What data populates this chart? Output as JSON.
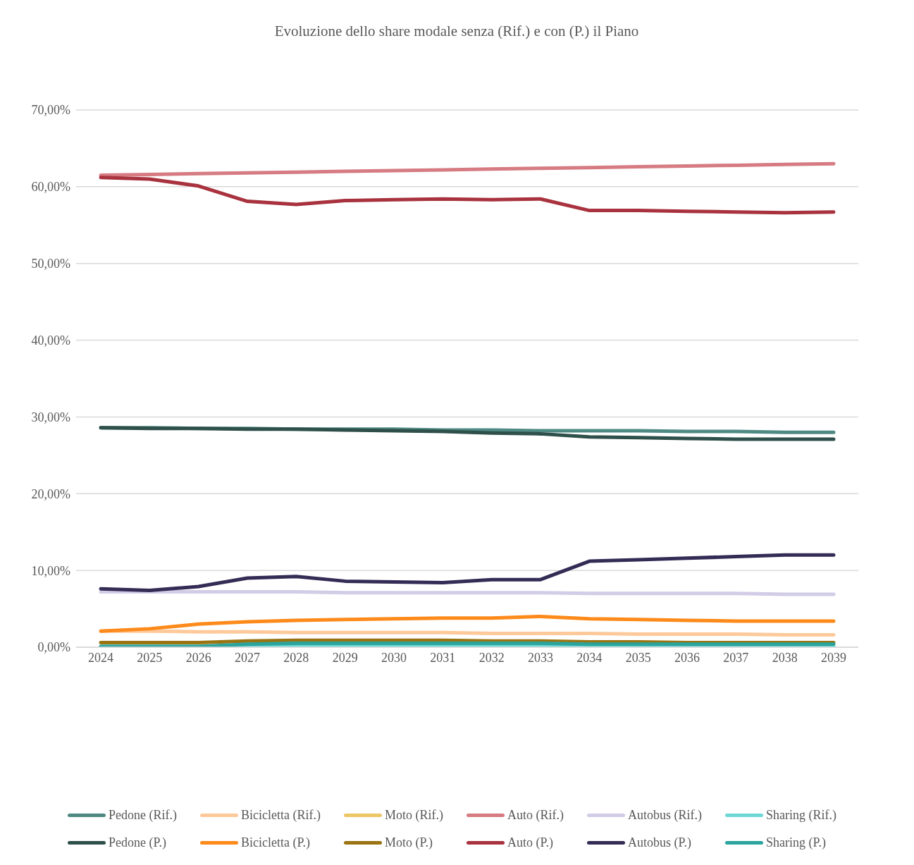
{
  "chart_data": {
    "type": "line",
    "title": "Evoluzione dello share modale senza (Rif.) e con (P.) il Piano",
    "categories": [
      "2024",
      "2025",
      "2026",
      "2027",
      "2028",
      "2029",
      "2030",
      "2031",
      "2032",
      "2033",
      "2034",
      "2035",
      "2036",
      "2037",
      "2038",
      "2039"
    ],
    "series": [
      {
        "name": "Pedone (Rif.)",
        "color": "#4e8a83",
        "values": [
          28.6,
          28.6,
          28.5,
          28.5,
          28.4,
          28.4,
          28.4,
          28.3,
          28.3,
          28.2,
          28.2,
          28.2,
          28.1,
          28.1,
          28.0,
          28.0
        ]
      },
      {
        "name": "Bicicletta (Rif.)",
        "color": "#fdc99a",
        "values": [
          2.1,
          2.1,
          2.0,
          2.0,
          1.9,
          1.9,
          1.9,
          1.9,
          1.8,
          1.8,
          1.8,
          1.7,
          1.7,
          1.7,
          1.6,
          1.6
        ]
      },
      {
        "name": "Moto (Rif.)",
        "color": "#ecc765",
        "values": [
          null,
          null,
          null,
          null,
          null,
          null,
          null,
          null,
          null,
          null,
          null,
          null,
          null,
          null,
          null,
          null
        ]
      },
      {
        "name": "Auto (Rif.)",
        "color": "#d67b82",
        "values": [
          61.5,
          61.6,
          61.7,
          61.8,
          61.9,
          62.0,
          62.1,
          62.2,
          62.3,
          62.4,
          62.5,
          62.6,
          62.7,
          62.8,
          62.9,
          63.0
        ]
      },
      {
        "name": "Autobus (Rif.)",
        "color": "#d2cce6",
        "values": [
          7.2,
          7.2,
          7.2,
          7.2,
          7.2,
          7.1,
          7.1,
          7.1,
          7.1,
          7.1,
          7.0,
          7.0,
          7.0,
          7.0,
          6.9,
          6.9
        ]
      },
      {
        "name": "Sharing (Rif.)",
        "color": "#6fd8d6",
        "values": [
          0.1,
          0.1,
          0.1,
          0.1,
          0.1,
          0.1,
          0.1,
          0.1,
          0.1,
          0.1,
          0.1,
          0.1,
          0.1,
          0.1,
          0.1,
          0.1
        ]
      },
      {
        "name": "Pedone (P.)",
        "color": "#2e4f4a",
        "values": [
          28.6,
          28.5,
          28.5,
          28.4,
          28.4,
          28.3,
          28.2,
          28.1,
          27.9,
          27.8,
          27.4,
          27.3,
          27.2,
          27.1,
          27.1,
          27.1
        ]
      },
      {
        "name": "Bicicletta (P.)",
        "color": "#fd8a1a",
        "values": [
          2.1,
          2.4,
          3.0,
          3.3,
          3.5,
          3.6,
          3.7,
          3.8,
          3.8,
          4.0,
          3.7,
          3.6,
          3.5,
          3.4,
          3.4,
          3.4
        ]
      },
      {
        "name": "Moto (P.)",
        "color": "#9a7412",
        "values": [
          0.6,
          0.6,
          0.6,
          0.8,
          0.9,
          0.9,
          0.9,
          0.9,
          0.8,
          0.8,
          0.7,
          0.7,
          0.6,
          0.6,
          0.6,
          0.6
        ]
      },
      {
        "name": "Auto (P.)",
        "color": "#a8323e",
        "values": [
          61.2,
          61.0,
          60.1,
          58.1,
          57.7,
          58.2,
          58.3,
          58.4,
          58.3,
          58.4,
          56.9,
          56.9,
          56.8,
          56.7,
          56.6,
          56.7
        ]
      },
      {
        "name": "Autobus (P.)",
        "color": "#342c55",
        "values": [
          7.6,
          7.4,
          7.9,
          9.0,
          9.2,
          8.6,
          8.5,
          8.4,
          8.8,
          8.8,
          11.2,
          11.4,
          11.6,
          11.8,
          12.0,
          12.0
        ]
      },
      {
        "name": "Sharing (P.)",
        "color": "#2aa49c",
        "values": [
          0.1,
          0.1,
          0.1,
          0.4,
          0.5,
          0.5,
          0.5,
          0.5,
          0.5,
          0.5,
          0.4,
          0.4,
          0.4,
          0.4,
          0.4,
          0.4
        ]
      }
    ],
    "ylim": [
      0,
      70
    ],
    "yticks": [
      {
        "value": 0,
        "label": "0,00%"
      },
      {
        "value": 10,
        "label": "10,00%"
      },
      {
        "value": 20,
        "label": "20,00%"
      },
      {
        "value": 30,
        "label": "30,00%"
      },
      {
        "value": 40,
        "label": "40,00%"
      },
      {
        "value": 50,
        "label": "50,00%"
      },
      {
        "value": 60,
        "label": "60,00%"
      },
      {
        "value": 70,
        "label": "70,00%"
      }
    ],
    "grid": "y",
    "legend": "bottom",
    "marker": "none",
    "line_style": "solid"
  }
}
